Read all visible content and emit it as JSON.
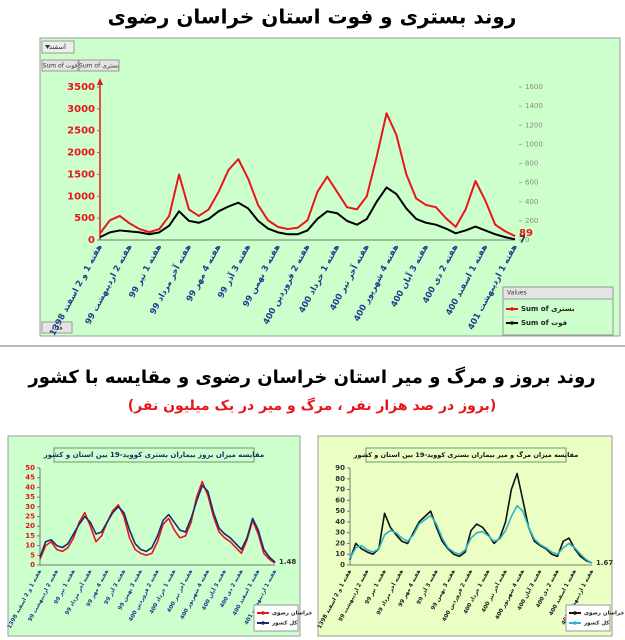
{
  "header": {
    "title": "روند بستری و فوت استان خراسان رضوی",
    "section_title": "روند بروز و مرگ و میر استان خراسان رضوی و مقایسه با کشور",
    "section_subtitle": "(بروز در صد هزار نفر ، مرگ و میر در یک میلیون نفر)"
  },
  "pivot_controls": {
    "filter": "اسفند",
    "field_buttons": [
      "Sum of فوت",
      "Sum of بستری"
    ],
    "row_button": "هفته",
    "legend_title": "Values"
  },
  "chart_data": [
    {
      "type": "line",
      "categories": [
        "هفته 1 و 2 اسفند 1398",
        null,
        null,
        "هفته 2 اردیبهشت 99",
        null,
        null,
        "هفته 1 تیر 99",
        null,
        null,
        "هفته آخر مرداد 99",
        null,
        null,
        "هفته 4 مهر 99",
        null,
        null,
        "هفته 3 آذر 99",
        null,
        null,
        "هفته 3 بهمن 99",
        null,
        null,
        "هفته 2 فروردین 400",
        null,
        null,
        "هفته 1 خرداد 400",
        null,
        null,
        "هفته آخر تیر 400",
        null,
        null,
        "هفته 4 شهریور 400",
        null,
        null,
        "هفته 3 آبان 400",
        null,
        null,
        "هفته 2 دی 400",
        null,
        null,
        "هفته 1 اسفند 400",
        null,
        null,
        "هفته 1 اردیبهشت 401"
      ],
      "series": [
        {
          "name": "Sum of بستری",
          "color": "#e8161b",
          "values": [
            150,
            450,
            550,
            380,
            250,
            180,
            250,
            550,
            1500,
            700,
            550,
            700,
            1100,
            1600,
            1850,
            1400,
            800,
            450,
            300,
            250,
            280,
            450,
            1100,
            1450,
            1100,
            750,
            700,
            1000,
            1900,
            2900,
            2400,
            1500,
            950,
            800,
            750,
            500,
            300,
            700,
            1350,
            900,
            350,
            200,
            89
          ]
        },
        {
          "name": "Sum of فوت",
          "color": "#000000",
          "axis": "y2",
          "values": [
            30,
            80,
            100,
            90,
            80,
            60,
            80,
            150,
            300,
            200,
            180,
            220,
            300,
            350,
            390,
            330,
            200,
            120,
            80,
            60,
            60,
            100,
            220,
            300,
            280,
            200,
            160,
            220,
            400,
            550,
            480,
            330,
            220,
            180,
            160,
            120,
            70,
            100,
            140,
            100,
            60,
            30,
            7
          ]
        }
      ],
      "ylim": [
        0,
        3500
      ],
      "yticks": [
        0,
        500,
        1000,
        1500,
        2000,
        2500,
        3000,
        3500
      ],
      "y2lim": [
        0,
        1600
      ],
      "y2ticks": [
        0,
        200,
        400,
        600,
        800,
        1000,
        1200,
        1400,
        1600
      ],
      "grid": false,
      "legend": "bottom-right",
      "background": "#ccffcc"
    },
    {
      "type": "line",
      "title": "مقایسه میزان بروز بیماران بستری کووید-19 بین استان و کشور",
      "categories": [
        "هفته 1 و 2 اسفند 1398",
        null,
        null,
        "هفته 2 اردیبهشت 99",
        null,
        null,
        "هفته 1 تیر 99",
        null,
        null,
        "هفته آخر مرداد 99",
        null,
        null,
        "هفته 4 مهر 99",
        null,
        null,
        "هفته 3 آذر 99",
        null,
        null,
        "هفته 3 بهمن 99",
        null,
        null,
        "هفته 2 فروردین 400",
        null,
        null,
        "هفته 1 خرداد 400",
        null,
        null,
        "هفته آخر تیر 400",
        null,
        null,
        "هفته 4 شهریور 400",
        null,
        null,
        "هفته 3 آبان 400",
        null,
        null,
        "هفته 2 دی 400",
        null,
        null,
        "هفته 1 اسفند 400",
        null,
        null,
        "هفته 1 اردیبهشت 401"
      ],
      "series": [
        {
          "name": "خراسان رضوی",
          "color": "#e8161b",
          "values": [
            3,
            10,
            12,
            8,
            7,
            9,
            14,
            22,
            27,
            20,
            12,
            15,
            22,
            28,
            31,
            25,
            14,
            8,
            6,
            5,
            6,
            12,
            21,
            24,
            18,
            14,
            15,
            22,
            35,
            43,
            36,
            25,
            17,
            14,
            12,
            9,
            6,
            13,
            23,
            16,
            6,
            3,
            1
          ]
        },
        {
          "name": "کل کشور",
          "color": "#1f2a6b",
          "values": [
            4,
            12,
            13,
            10,
            9,
            11,
            16,
            21,
            25,
            22,
            16,
            17,
            22,
            27,
            30,
            27,
            18,
            11,
            8,
            7,
            9,
            15,
            23,
            26,
            22,
            18,
            17,
            24,
            33,
            41,
            38,
            27,
            19,
            16,
            14,
            11,
            8,
            14,
            24,
            18,
            8,
            4,
            1.48
          ]
        }
      ],
      "ylim": [
        0,
        50
      ],
      "yticks": [
        0,
        5,
        10,
        15,
        20,
        25,
        30,
        35,
        40,
        45,
        50
      ],
      "grid": false,
      "legend": "bottom-right",
      "background": "#ccffcc"
    },
    {
      "type": "line",
      "title": "مقایسه میزان مرگ و میر بیماران بستری کووید-19 بین استان و کشور",
      "categories": [
        "هفته 1 و 2 اسفند 1398",
        null,
        null,
        "هفته 2 اردیبهشت 99",
        null,
        null,
        "هفته 1 تیر 99",
        null,
        null,
        "هفته آخر مرداد 99",
        null,
        null,
        "هفته 4 مهر 99",
        null,
        null,
        "هفته 3 آذر 99",
        null,
        null,
        "هفته 3 بهمن 99",
        null,
        null,
        "هفته 2 فروردین 400",
        null,
        null,
        "هفته 1 خرداد 400",
        null,
        null,
        "هفته آخر تیر 400",
        null,
        null,
        "هفته 4 شهریور 400",
        null,
        null,
        "هفته 3 آبان 400",
        null,
        null,
        "هفته 2 دی 400",
        null,
        null,
        "هفته 1 اسفند 400",
        null,
        null,
        "هفته 1 اردیبهشت 401"
      ],
      "series": [
        {
          "name": "خراسان رضوی",
          "color": "#111111",
          "values": [
            5,
            20,
            15,
            12,
            10,
            15,
            48,
            35,
            28,
            22,
            20,
            30,
            40,
            45,
            50,
            35,
            22,
            15,
            10,
            8,
            12,
            32,
            38,
            35,
            28,
            20,
            25,
            40,
            70,
            85,
            60,
            35,
            22,
            18,
            15,
            10,
            8,
            22,
            25,
            15,
            8,
            4,
            2
          ]
        },
        {
          "name": "کل کشور",
          "color": "#2bb5c8",
          "values": [
            6,
            16,
            18,
            14,
            12,
            15,
            28,
            32,
            30,
            25,
            22,
            28,
            38,
            42,
            46,
            38,
            25,
            16,
            12,
            10,
            14,
            25,
            30,
            31,
            27,
            22,
            24,
            32,
            45,
            55,
            50,
            35,
            24,
            19,
            16,
            12,
            10,
            16,
            20,
            16,
            10,
            5,
            1.67
          ]
        }
      ],
      "ylim": [
        0,
        90
      ],
      "yticks": [
        0,
        10,
        20,
        30,
        40,
        50,
        60,
        70,
        80,
        90
      ],
      "grid": false,
      "legend": "bottom-right",
      "background": "#ebffc4"
    }
  ]
}
